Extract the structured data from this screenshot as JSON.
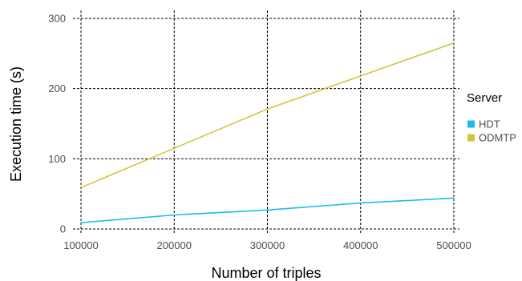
{
  "chart_data": {
    "type": "line",
    "title": "",
    "xlabel": "Number of triples",
    "ylabel": "Execution time (s)",
    "x": [
      100000,
      200000,
      300000,
      400000,
      500000
    ],
    "xticks": [
      "100000",
      "200000",
      "300000",
      "400000",
      "500000"
    ],
    "yticks": [
      "0",
      "100",
      "200",
      "300"
    ],
    "xlim": [
      100000,
      500000
    ],
    "ylim": [
      0,
      300
    ],
    "grid": true,
    "legend": {
      "title": "Server",
      "placement": "right"
    },
    "series": [
      {
        "name": "HDT",
        "color": "#1bbde8",
        "values": [
          9,
          20,
          27,
          37,
          44
        ]
      },
      {
        "name": "ODMTP",
        "color": "#d4c43a",
        "values": [
          59,
          115,
          171,
          218,
          265
        ]
      }
    ]
  }
}
